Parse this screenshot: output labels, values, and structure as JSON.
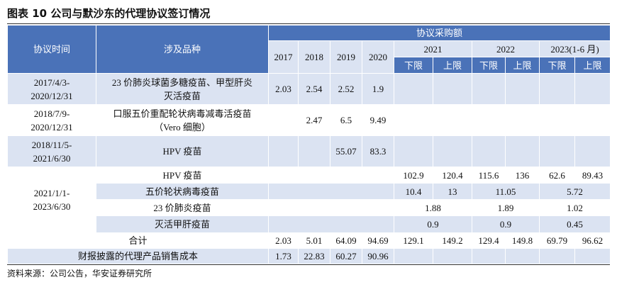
{
  "title": "图表 10 公司与默沙东的代理协议签订情况",
  "table": {
    "header": {
      "period": "协议时间",
      "product": "涉及品种",
      "amount": "协议采购额",
      "years": [
        "2017",
        "2018",
        "2019",
        "2020",
        "2021",
        "2022",
        "2023(1-6 月)"
      ],
      "bounds": [
        "下限",
        "上限",
        "下限",
        "上限",
        "下限",
        "上限"
      ]
    },
    "rows": [
      {
        "period": [
          "2017/4/3-",
          "2020/12/31"
        ],
        "product": [
          "23 价肺炎球菌多糖疫苗、甲型肝炎",
          "灭活疫苗"
        ],
        "2017": 2.03,
        "2018": 2.54,
        "2019": 2.52,
        "2020": 1.9
      },
      {
        "period": [
          "2018/7/9-",
          "2020/12/31"
        ],
        "product": [
          "口服五价重配轮状病毒减毒活疫苗",
          "（Vero 细胞）"
        ],
        "2018": 2.47,
        "2019": 6.5,
        "2020": 9.49
      },
      {
        "period": [
          "2018/11/5-",
          "2021/6/30"
        ],
        "product": [
          "HPV 疫苗"
        ],
        "2019": 55.07,
        "2020": 83.3
      },
      {
        "period": [
          "2021/1/1-",
          "2023/6/30"
        ],
        "product": [
          "HPV 疫苗"
        ],
        "2021": [
          102.9,
          120.4
        ],
        "2022": [
          115.6,
          136
        ],
        "2023": [
          62.6,
          89.43
        ]
      },
      {
        "product": [
          "五价轮状病毒疫苗"
        ],
        "2021": [
          10.4,
          13
        ],
        "2022": 11.05,
        "2023": 5.72
      },
      {
        "product": [
          "23 价肺炎疫苗"
        ],
        "2021": 1.88,
        "2022": 1.89,
        "2023": 1.02
      },
      {
        "product": [
          "灭活甲肝疫苗"
        ],
        "2021": 0.9,
        "2022": 0.9,
        "2023": 0.45
      }
    ],
    "total": {
      "label": "合计",
      "values": [
        2.03,
        5.01,
        64.09,
        94.69,
        129.1,
        149.2,
        129.4,
        149.8,
        69.79,
        96.62
      ]
    },
    "cost": {
      "label": "财报披露的代理产品销售成本",
      "values": [
        1.73,
        22.83,
        60.27,
        90.96
      ]
    }
  },
  "source": "资料来源：公司公告，华安证券研究所"
}
